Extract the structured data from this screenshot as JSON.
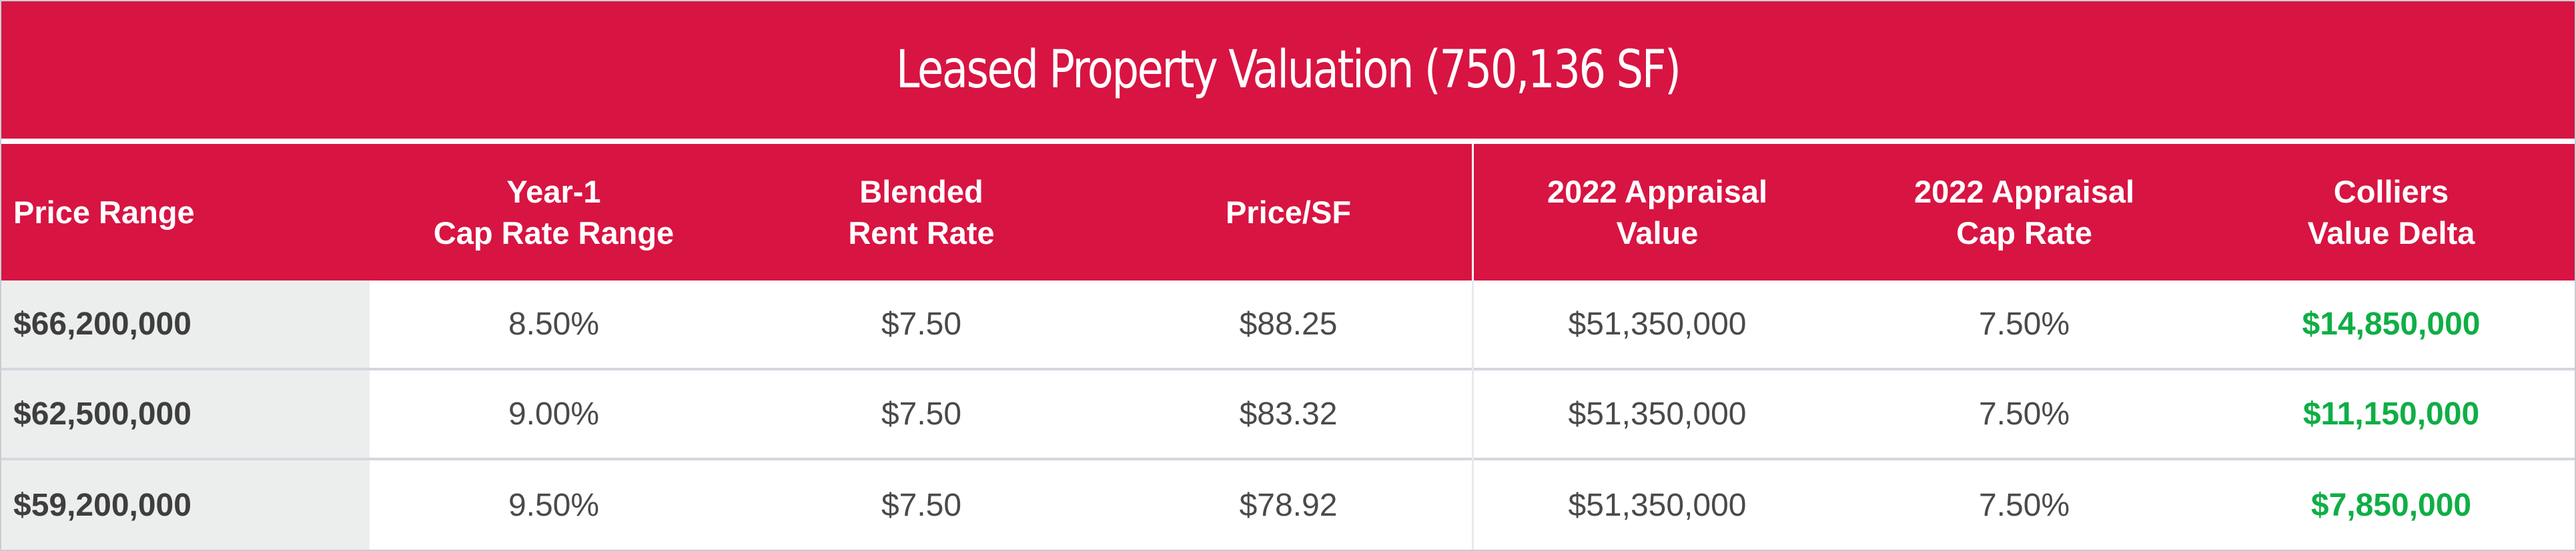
{
  "table": {
    "title": "Leased Property Valuation (750,136 SF)",
    "headers": [
      {
        "line1": "Price Range",
        "line2": ""
      },
      {
        "line1": "Year-1",
        "line2": "Cap Rate Range"
      },
      {
        "line1": "Blended",
        "line2": "Rent Rate"
      },
      {
        "line1": "Price/SF",
        "line2": ""
      },
      {
        "line1": "2022 Appraisal",
        "line2": "Value"
      },
      {
        "line1": "2022 Appraisal",
        "line2": "Cap Rate"
      },
      {
        "line1": "Colliers",
        "line2": "Value Delta"
      }
    ],
    "rows": [
      {
        "price_range": "$66,200,000",
        "cap_rate_range": "8.50%",
        "blended_rent_rate": "$7.50",
        "price_per_sf": "$88.25",
        "appraisal_value": "$51,350,000",
        "appraisal_cap_rate": "7.50%",
        "value_delta": "$14,850,000"
      },
      {
        "price_range": "$62,500,000",
        "cap_rate_range": "9.00%",
        "blended_rent_rate": "$7.50",
        "price_per_sf": "$83.32",
        "appraisal_value": "$51,350,000",
        "appraisal_cap_rate": "7.50%",
        "value_delta": "$11,150,000"
      },
      {
        "price_range": "$59,200,000",
        "cap_rate_range": "9.50%",
        "blended_rent_rate": "$7.50",
        "price_per_sf": "$78.92",
        "appraisal_value": "$51,350,000",
        "appraisal_cap_rate": "7.50%",
        "value_delta": "$7,850,000"
      }
    ]
  },
  "colors": {
    "header_background": "#d81442",
    "header_text": "#ffffff",
    "price_column_background": "#eceeed",
    "delta_text": "#0fae45",
    "body_text": "#4a4a4a",
    "row_separator": "#d4d7de"
  }
}
